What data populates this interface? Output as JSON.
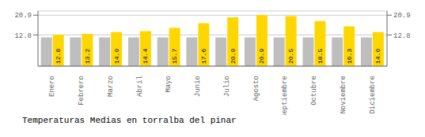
{
  "chart_data": {
    "type": "bar",
    "title": "Temperaturas Medias en torralba del pinar",
    "categories": [
      "Enero",
      "Febrero",
      "Marzo",
      "Abril",
      "Mayo",
      "Junio",
      "Julio",
      "Agosto",
      "Septiembre",
      "Octubre",
      "Noviembre",
      "Diciembre"
    ],
    "series": [
      {
        "color": "#BEBEBE",
        "values": [
          11.8,
          11.8,
          11.8,
          11.8,
          11.8,
          11.8,
          11.8,
          11.8,
          11.8,
          11.8,
          11.8,
          11.8
        ]
      },
      {
        "color": "#FFD700",
        "values": [
          12.8,
          13.2,
          14.0,
          14.4,
          15.7,
          17.6,
          20.0,
          20.9,
          20.5,
          18.5,
          16.3,
          14.0
        ],
        "value_labels": [
          "12.8",
          "13.2",
          "14.0",
          "14.4",
          "15.7",
          "17.6",
          "20.0",
          "20.9",
          "20.5",
          "18.5",
          "16.3",
          "14.0"
        ],
        "data_labels": true
      }
    ],
    "ylim": [
      0,
      22.6
    ],
    "yticks": [
      12.8,
      20.9
    ],
    "y2lim": [
      0,
      22.6
    ],
    "y2ticks": [
      12.8,
      20.9
    ],
    "grid": true
  }
}
